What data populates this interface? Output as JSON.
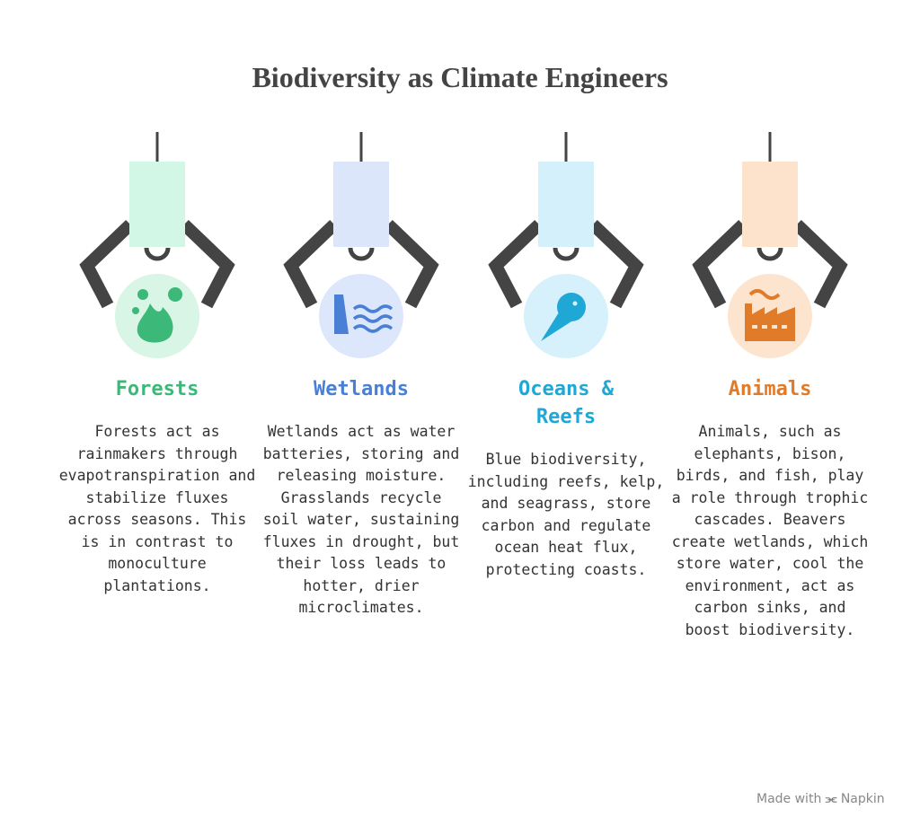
{
  "header": {
    "title": "Biodiversity as Climate Engineers"
  },
  "items": [
    {
      "title": "Forests",
      "text": "Forests act as rainmakers through evapotranspiration and stabilize fluxes across seasons. This is in contrast to monoculture plantations."
    },
    {
      "title": "Wetlands",
      "text": "Wetlands act as water batteries, storing and releasing moisture. Grasslands recycle soil water, sustaining fluxes in drought, but their loss leads to hotter, drier microclimates."
    },
    {
      "title": "Oceans & Reefs",
      "text": "Blue biodiversity, including reefs, kelp, and seagrass, store carbon and regulate ocean heat flux, protecting coasts."
    },
    {
      "title": "Animals",
      "text": "Animals, such as elephants, bison, birds, and fish, play a role through trophic cascades. Beavers create wetlands, which store water, cool the environment, act as carbon sinks, and boost biodiversity."
    }
  ],
  "footer": {
    "made_with": "Made with",
    "brand": "Napkin"
  }
}
